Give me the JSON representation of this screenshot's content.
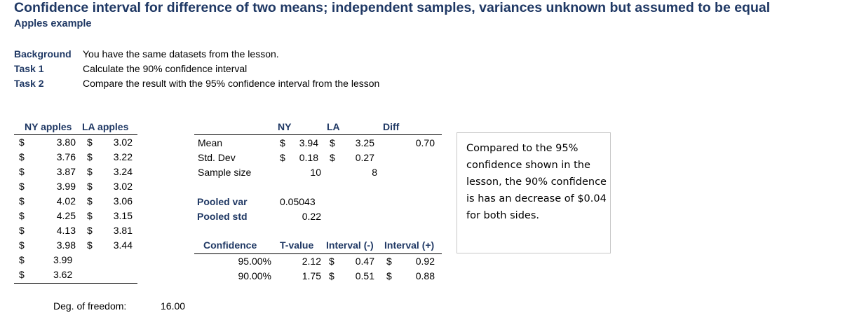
{
  "header": {
    "title": "Confidence interval for difference of two means; independent samples, variances unknown but assumed to be equal",
    "subtitle": "Apples example"
  },
  "tasks": [
    {
      "label": "Background",
      "text": "You have the same datasets from the lesson."
    },
    {
      "label": "Task 1",
      "text": "Calculate the 90% confidence interval"
    },
    {
      "label": "Task 2",
      "text": "Compare the result with the 95% confidence interval from the lesson"
    }
  ],
  "apples": {
    "headers": {
      "ny": "NY apples",
      "la": "LA apples"
    },
    "currency": "$",
    "rows": [
      {
        "ny": "3.80",
        "la": "3.02"
      },
      {
        "ny": "3.76",
        "la": "3.22"
      },
      {
        "ny": "3.87",
        "la": "3.24"
      },
      {
        "ny": "3.99",
        "la": "3.02"
      },
      {
        "ny": "4.02",
        "la": "3.06"
      },
      {
        "ny": "4.25",
        "la": "3.15"
      },
      {
        "ny": "4.13",
        "la": "3.81"
      },
      {
        "ny": "3.98",
        "la": "3.44"
      },
      {
        "ny": "3.99",
        "la": ""
      },
      {
        "ny": "3.62",
        "la": ""
      }
    ],
    "dof_label": "Deg. of freedom:",
    "dof_value": "16.00"
  },
  "stats": {
    "headers": {
      "ny": "NY",
      "la": "LA",
      "diff": "Diff"
    },
    "mean": {
      "label": "Mean",
      "ny": "3.94",
      "la": "3.25",
      "diff": "0.70"
    },
    "std": {
      "label": "Std. Dev",
      "ny": "0.18",
      "la": "0.27"
    },
    "size": {
      "label": "Sample size",
      "ny": "10",
      "la": "8"
    },
    "pooled_var": {
      "label": "Pooled var",
      "value": "0.05043"
    },
    "pooled_std": {
      "label": "Pooled std",
      "value": "0.22"
    }
  },
  "confidence": {
    "headers": {
      "conf": "Confidence",
      "t": "T-value",
      "lo": "Interval (-)",
      "hi": "Interval (+)"
    },
    "rows": [
      {
        "conf": "95.00%",
        "t": "2.12",
        "lo": "0.47",
        "hi": "0.92"
      },
      {
        "conf": "90.00%",
        "t": "1.75",
        "lo": "0.51",
        "hi": "0.88"
      }
    ]
  },
  "note": "Compared to the 95% confidence shown in the lesson, the 90% confidence is has an decrease of $0.04 for both sides."
}
